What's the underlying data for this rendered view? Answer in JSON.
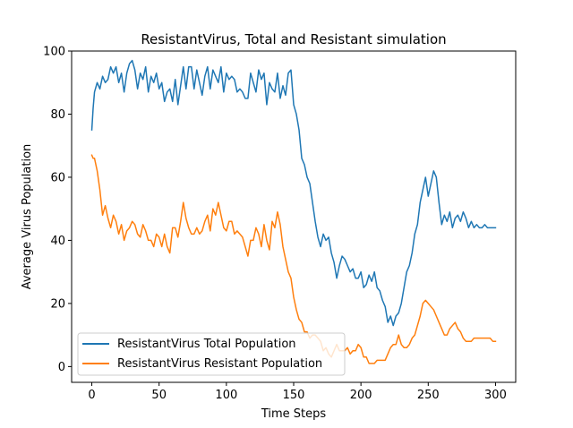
{
  "chart_data": {
    "type": "line",
    "title": "ResistantVirus, Total and Resistant simulation",
    "xlabel": "Time Steps",
    "ylabel": "Average Virus Population",
    "xlim": [
      -15,
      315
    ],
    "ylim": [
      -5,
      100
    ],
    "xticks": [
      0,
      50,
      100,
      150,
      200,
      250,
      300
    ],
    "yticks": [
      0,
      20,
      40,
      60,
      80,
      100
    ],
    "grid": false,
    "legend": "lower-left",
    "series": [
      {
        "name": "ResistantVirus Total Population",
        "color": "#1f77b4",
        "x": [
          0,
          1,
          2,
          4,
          6,
          8,
          10,
          12,
          14,
          16,
          18,
          20,
          22,
          24,
          26,
          28,
          30,
          32,
          34,
          36,
          38,
          40,
          42,
          44,
          46,
          48,
          50,
          52,
          54,
          56,
          58,
          60,
          62,
          64,
          66,
          68,
          70,
          72,
          74,
          76,
          78,
          80,
          82,
          84,
          86,
          88,
          90,
          92,
          94,
          96,
          98,
          100,
          102,
          104,
          106,
          108,
          110,
          112,
          114,
          116,
          118,
          120,
          122,
          124,
          126,
          128,
          130,
          132,
          134,
          136,
          138,
          140,
          142,
          144,
          146,
          148,
          150,
          152,
          154,
          156,
          158,
          160,
          162,
          164,
          166,
          168,
          170,
          172,
          174,
          176,
          178,
          180,
          182,
          184,
          186,
          188,
          190,
          192,
          194,
          196,
          198,
          200,
          202,
          204,
          206,
          208,
          210,
          212,
          214,
          216,
          218,
          220,
          222,
          224,
          226,
          228,
          230,
          232,
          234,
          236,
          238,
          240,
          242,
          244,
          246,
          248,
          250,
          252,
          254,
          256,
          258,
          260,
          262,
          264,
          266,
          268,
          270,
          272,
          274,
          276,
          278,
          280,
          282,
          284,
          286,
          288,
          290,
          292,
          294,
          296,
          298,
          300
        ],
        "values": [
          75,
          82,
          87,
          90,
          88,
          92,
          90,
          91,
          95,
          93,
          95,
          90,
          93,
          87,
          93,
          96,
          97,
          94,
          88,
          93,
          91,
          95,
          87,
          92,
          90,
          93,
          88,
          90,
          84,
          87,
          88,
          84,
          91,
          83,
          89,
          95,
          88,
          95,
          95,
          88,
          94,
          90,
          86,
          92,
          95,
          88,
          94,
          92,
          90,
          95,
          87,
          93,
          91,
          92,
          91,
          87,
          88,
          87,
          85,
          85,
          93,
          90,
          87,
          94,
          91,
          93,
          83,
          90,
          88,
          87,
          93,
          85,
          89,
          86,
          93,
          94,
          83,
          80,
          75,
          66,
          64,
          60,
          58,
          52,
          46,
          41,
          38,
          42,
          40,
          41,
          36,
          33,
          28,
          32,
          35,
          34,
          32,
          30,
          31,
          28,
          28,
          30,
          25,
          26,
          29,
          27,
          30,
          25,
          24,
          21,
          19,
          14,
          16,
          13,
          16,
          17,
          20,
          25,
          30,
          32,
          36,
          42,
          45,
          52,
          56,
          60,
          54,
          58,
          62,
          60,
          52,
          45,
          48,
          46,
          49,
          44,
          47,
          48,
          46,
          49,
          47,
          44,
          46,
          44,
          45,
          44,
          44,
          45,
          44,
          44,
          44,
          44
        ]
      },
      {
        "name": "ResistantVirus Resistant Population",
        "color": "#ff7f0e",
        "x": [
          0,
          1,
          2,
          4,
          6,
          8,
          10,
          12,
          14,
          16,
          18,
          20,
          22,
          24,
          26,
          28,
          30,
          32,
          34,
          36,
          38,
          40,
          42,
          44,
          46,
          48,
          50,
          52,
          54,
          56,
          58,
          60,
          62,
          64,
          66,
          68,
          70,
          72,
          74,
          76,
          78,
          80,
          82,
          84,
          86,
          88,
          90,
          92,
          94,
          96,
          98,
          100,
          102,
          104,
          106,
          108,
          110,
          112,
          114,
          116,
          118,
          120,
          122,
          124,
          126,
          128,
          130,
          132,
          134,
          136,
          138,
          140,
          142,
          144,
          146,
          148,
          150,
          152,
          154,
          156,
          158,
          160,
          162,
          164,
          166,
          168,
          170,
          172,
          174,
          176,
          178,
          180,
          182,
          184,
          186,
          188,
          190,
          192,
          194,
          196,
          198,
          200,
          202,
          204,
          206,
          208,
          210,
          212,
          214,
          216,
          218,
          220,
          222,
          224,
          226,
          228,
          230,
          232,
          234,
          236,
          238,
          240,
          242,
          244,
          246,
          248,
          250,
          252,
          254,
          256,
          258,
          260,
          262,
          264,
          266,
          268,
          270,
          272,
          274,
          276,
          278,
          280,
          282,
          284,
          286,
          288,
          290,
          292,
          294,
          296,
          298,
          300
        ],
        "values": [
          67,
          66,
          66,
          62,
          56,
          48,
          51,
          47,
          44,
          48,
          46,
          42,
          45,
          40,
          43,
          44,
          46,
          45,
          42,
          41,
          45,
          43,
          40,
          40,
          38,
          42,
          41,
          38,
          42,
          38,
          36,
          44,
          44,
          41,
          46,
          52,
          47,
          44,
          42,
          42,
          44,
          42,
          43,
          46,
          48,
          43,
          50,
          48,
          52,
          48,
          44,
          43,
          46,
          46,
          42,
          43,
          42,
          41,
          38,
          35,
          40,
          40,
          44,
          42,
          38,
          45,
          40,
          37,
          46,
          44,
          49,
          45,
          38,
          34,
          30,
          28,
          22,
          18,
          15,
          14,
          11,
          11,
          9,
          10,
          10,
          9,
          8,
          5,
          6,
          4,
          3,
          5,
          7,
          5,
          5,
          5,
          6,
          4,
          5,
          5,
          7,
          6,
          3,
          3,
          1,
          1,
          1,
          2,
          2,
          2,
          2,
          4,
          6,
          7,
          7,
          10,
          7,
          6,
          6,
          7,
          9,
          10,
          13,
          16,
          20,
          21,
          20,
          19,
          18,
          16,
          14,
          12,
          10,
          10,
          12,
          13,
          14,
          12,
          11,
          9,
          8,
          8,
          8,
          9,
          9,
          9,
          9,
          9,
          9,
          9,
          8,
          8
        ]
      }
    ]
  }
}
